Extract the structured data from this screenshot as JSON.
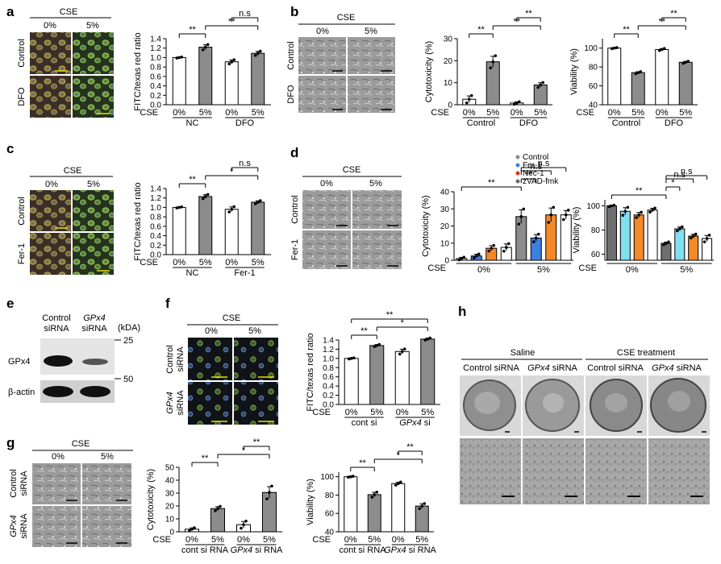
{
  "panels": [
    "a",
    "b",
    "c",
    "d",
    "e",
    "f",
    "g",
    "h"
  ],
  "micro": {
    "cse": "CSE",
    "pct0": "0%",
    "pct5": "5%",
    "a_rows": [
      "Control",
      "DFO"
    ],
    "b_rows": [
      "Control",
      "DFO"
    ],
    "c_rows": [
      "Control",
      "Fer-1"
    ],
    "d_rows": [
      "Control",
      "Fer-1"
    ],
    "f_rows": [
      [
        "Control",
        "siRNA"
      ],
      [
        "GPx4",
        "siRNA"
      ]
    ],
    "g_rows": [
      [
        "Control",
        "siRNA"
      ],
      [
        "GPx4",
        "siRNA"
      ]
    ]
  },
  "blot": {
    "lanes": [
      [
        "Control",
        "siRNA"
      ],
      [
        "GPx4",
        "siRNA"
      ]
    ],
    "kda": "(kDA)",
    "markers": [
      "25",
      "50"
    ],
    "bands": [
      "GPx4",
      "β-actin"
    ]
  },
  "tem": {
    "groups": [
      "Saline",
      "CSE treatment"
    ],
    "columns": [
      [
        "Control siRNA",
        ""
      ],
      [
        "GPx4",
        " siRNA"
      ],
      [
        "Control siRNA",
        ""
      ],
      [
        "GPx4",
        " siRNA"
      ]
    ]
  },
  "colors": {
    "white": "#ffffff",
    "grey": "#8c8c8c",
    "darkgrey": "#6e6e6e",
    "blue": "#3d7fe0",
    "lightblue": "#7fe0f0",
    "orange": "#f5892a",
    "red": "#e03020"
  },
  "chart_data": [
    {
      "id": "a_chart",
      "type": "bar",
      "ylabel": "FITC/texas red ratio",
      "ylim": [
        0.0,
        1.4
      ],
      "yticks": [
        "0.0",
        "0.2",
        "0.4",
        "0.6",
        "0.8",
        "1.0",
        "1.2",
        "1.4"
      ],
      "xrow": "CSE",
      "categories": [
        "0%",
        "5%",
        "0%",
        "5%"
      ],
      "groups": [
        "NC",
        "DFO"
      ],
      "values": [
        1.0,
        1.22,
        0.91,
        1.09
      ],
      "errors": [
        0.01,
        0.05,
        0.04,
        0.04
      ],
      "fills": [
        "white",
        "grey",
        "white",
        "grey"
      ],
      "significance": [
        [
          "**",
          0,
          1
        ],
        [
          "**",
          1,
          3
        ],
        [
          "n.s",
          2,
          3
        ]
      ]
    },
    {
      "id": "b_cyto",
      "type": "bar",
      "ylabel": "Cytotoxicity (%)",
      "ylim": [
        0,
        30
      ],
      "yticks": [
        "0",
        "10",
        "20",
        "30"
      ],
      "xrow": "CSE",
      "categories": [
        "0%",
        "5%",
        "0%",
        "5%"
      ],
      "groups": [
        "Control",
        "DFO"
      ],
      "values": [
        2.5,
        19.5,
        0.8,
        9.0
      ],
      "errors": [
        1.5,
        2.5,
        0.5,
        1.0
      ],
      "fills": [
        "white",
        "grey",
        "white",
        "grey"
      ],
      "significance": [
        [
          "**",
          0,
          1
        ],
        [
          "**",
          1,
          3
        ],
        [
          "**",
          2,
          3
        ]
      ]
    },
    {
      "id": "b_via",
      "type": "bar",
      "ylabel": "Viability (%)",
      "ylim": [
        40,
        110
      ],
      "yticks": [
        "40",
        "60",
        "80",
        "100"
      ],
      "xrow": "CSE",
      "categories": [
        "0%",
        "5%",
        "0%",
        "5%"
      ],
      "groups": [
        "Control",
        "DFO"
      ],
      "values": [
        100,
        74,
        98.5,
        85
      ],
      "errors": [
        0.5,
        1.0,
        1.0,
        1.0
      ],
      "fills": [
        "white",
        "grey",
        "white",
        "grey"
      ],
      "significance": [
        [
          "**",
          0,
          1
        ],
        [
          "**",
          1,
          3
        ],
        [
          "**",
          2,
          3
        ]
      ]
    },
    {
      "id": "c_chart",
      "type": "bar",
      "ylabel": "FITC/texas red ratio",
      "ylim": [
        0.0,
        1.4
      ],
      "yticks": [
        "0.0",
        "0.2",
        "0.4",
        "0.6",
        "0.8",
        "1.0",
        "1.2",
        "1.4"
      ],
      "xrow": "CSE",
      "categories": [
        "0%",
        "5%",
        "0%",
        "5%"
      ],
      "groups": [
        "NC",
        "Fer-1"
      ],
      "values": [
        1.0,
        1.23,
        0.96,
        1.11
      ],
      "errors": [
        0.01,
        0.04,
        0.05,
        0.03
      ],
      "fills": [
        "white",
        "grey",
        "white",
        "grey"
      ],
      "significance": [
        [
          "**",
          0,
          1
        ],
        [
          "*",
          1,
          3
        ],
        [
          "n.s",
          2,
          3
        ]
      ]
    },
    {
      "id": "d_cyto",
      "type": "bar",
      "ylabel": "Cytotoxicity (%)",
      "ylim": [
        0,
        40
      ],
      "yticks": [
        "0",
        "10",
        "20",
        "30",
        "40"
      ],
      "xrow": "CSE",
      "categories": [
        "Control",
        "Fer-1",
        "Nec-1",
        "zVAD-fmk",
        "Control",
        "Fer-1",
        "Nec-1",
        "zVAD-fmk"
      ],
      "groups": [
        "0%",
        "5%"
      ],
      "values": [
        1.0,
        2.5,
        7.0,
        7.5,
        25.5,
        13.0,
        26.5,
        26.5
      ],
      "errors": [
        0.7,
        1.0,
        1.5,
        2.0,
        4.0,
        2.0,
        4.0,
        2.5
      ],
      "fills": [
        "white",
        "blue",
        "orange",
        "white",
        "grey",
        "blue",
        "orange",
        "white"
      ],
      "legend": [
        "Control",
        "Fer-1",
        "Nec-1",
        "zVAD-fmk"
      ],
      "legend_position": "top-right",
      "significance": [
        [
          "**",
          0,
          4
        ],
        [
          "**",
          4,
          5
        ],
        [
          "n.s",
          4,
          6
        ],
        [
          "n.s",
          4,
          7
        ]
      ]
    },
    {
      "id": "d_via",
      "type": "bar",
      "ylabel": "Viability (%)",
      "ylim": [
        55,
        105
      ],
      "yticks": [
        "60",
        "80",
        "100"
      ],
      "xrow": "CSE",
      "categories": [
        "Control",
        "Fer-1",
        "Nec-1",
        "zVAD-fmk",
        "Control",
        "Fer-1",
        "Nec-1",
        "zVAD-fmk"
      ],
      "groups": [
        "0%",
        "5%"
      ],
      "values": [
        100,
        95.5,
        92.5,
        96.5,
        69,
        81,
        75,
        73
      ],
      "errors": [
        0.5,
        3.0,
        2.0,
        1.5,
        1.0,
        1.5,
        1.5,
        2.5
      ],
      "fills": [
        "darkgrey",
        "lightblue",
        "orange",
        "white",
        "darkgrey",
        "lightblue",
        "orange",
        "white"
      ],
      "significance": [
        [
          "**",
          0,
          4
        ],
        [
          "*",
          4,
          5
        ],
        [
          "n.s",
          4,
          6
        ],
        [
          "n.s",
          4,
          7
        ]
      ]
    },
    {
      "id": "f_chart",
      "type": "bar",
      "ylabel": "FITC/texas red ratio",
      "ylim": [
        0.0,
        1.4
      ],
      "yticks": [
        "0.0",
        "0.2",
        "0.4",
        "0.6",
        "0.8",
        "1.0",
        "1.2",
        "1.4"
      ],
      "xrow": "CSE",
      "categories": [
        "0%",
        "5%",
        "0%",
        "5%"
      ],
      "groups": [
        "cont si",
        "GPx4 si"
      ],
      "values": [
        1.0,
        1.28,
        1.15,
        1.42
      ],
      "errors": [
        0.01,
        0.02,
        0.05,
        0.02
      ],
      "fills": [
        "white",
        "grey",
        "white",
        "grey"
      ],
      "significance": [
        [
          "**",
          0,
          1
        ],
        [
          "*",
          1,
          3
        ],
        [
          "**",
          0,
          3
        ]
      ]
    },
    {
      "id": "g_cyto",
      "type": "bar",
      "ylabel": "Cytotoxicity (%)",
      "ylim": [
        0,
        50
      ],
      "yticks": [
        "0",
        "10",
        "20",
        "30",
        "40",
        "50"
      ],
      "xrow": "CSE",
      "categories": [
        "0%",
        "5%",
        "0%",
        "5%"
      ],
      "groups": [
        "cont si RNA",
        "GPx4 si RNA"
      ],
      "values": [
        2.0,
        18.0,
        5.5,
        30.5
      ],
      "errors": [
        1.0,
        1.5,
        2.5,
        4.5
      ],
      "fills": [
        "white",
        "grey",
        "white",
        "grey"
      ],
      "significance": [
        [
          "**",
          0,
          1
        ],
        [
          "*",
          1,
          3
        ],
        [
          "**",
          2,
          3
        ]
      ]
    },
    {
      "id": "g_via",
      "type": "bar",
      "ylabel": "Viability (%)",
      "ylim": [
        40,
        105
      ],
      "yticks": [
        "40",
        "60",
        "80",
        "100"
      ],
      "xrow": "CSE",
      "categories": [
        "0%",
        "5%",
        "0%",
        "5%"
      ],
      "groups": [
        "cont si RNA",
        "GPx4 si RNA"
      ],
      "values": [
        100,
        80.5,
        92.5,
        68
      ],
      "errors": [
        0.5,
        2.5,
        1.5,
        2.5
      ],
      "fills": [
        "white",
        "grey",
        "white",
        "grey"
      ],
      "significance": [
        [
          "**",
          0,
          1
        ],
        [
          "*",
          1,
          3
        ],
        [
          "**",
          2,
          3
        ]
      ]
    }
  ]
}
